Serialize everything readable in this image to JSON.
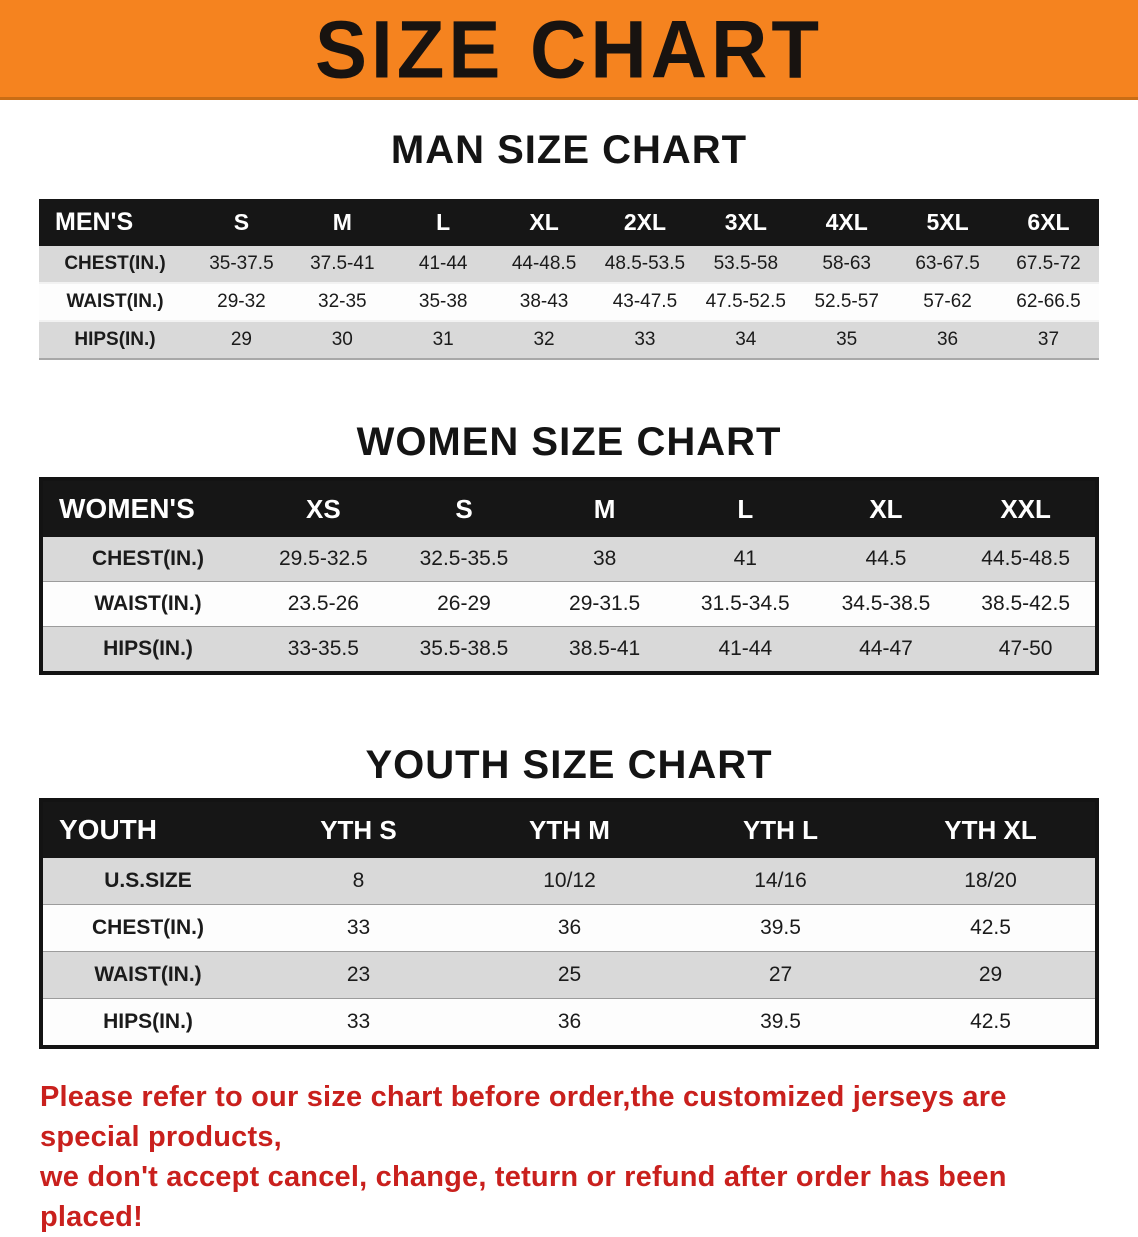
{
  "colors": {
    "banner_bg": "#F5831F",
    "header_bg": "#161616",
    "row_alt": "#D9D9D9",
    "disclaimer_color": "#C9201D"
  },
  "banner": {
    "title": "SIZE CHART"
  },
  "sections": [
    {
      "heading": "MAN SIZE CHART",
      "table": {
        "header": [
          "MEN'S",
          "S",
          "M",
          "L",
          "XL",
          "2XL",
          "3XL",
          "4XL",
          "5XL",
          "6XL"
        ],
        "rows": [
          [
            "CHEST(IN.)",
            "35-37.5",
            "37.5-41",
            "41-44",
            "44-48.5",
            "48.5-53.5",
            "53.5-58",
            "58-63",
            "63-67.5",
            "67.5-72"
          ],
          [
            "WAIST(IN.)",
            "29-32",
            "32-35",
            "35-38",
            "38-43",
            "43-47.5",
            "47.5-52.5",
            "52.5-57",
            "57-62",
            "62-66.5"
          ],
          [
            "HIPS(IN.)",
            "29",
            "30",
            "31",
            "32",
            "33",
            "34",
            "35",
            "36",
            "37"
          ]
        ]
      }
    },
    {
      "heading": "WOMEN SIZE CHART",
      "table": {
        "header": [
          "WOMEN'S",
          "XS",
          "S",
          "M",
          "L",
          "XL",
          "XXL"
        ],
        "rows": [
          [
            "CHEST(IN.)",
            "29.5-32.5",
            "32.5-35.5",
            "38",
            "41",
            "44.5",
            "44.5-48.5"
          ],
          [
            "WAIST(IN.)",
            "23.5-26",
            "26-29",
            "29-31.5",
            "31.5-34.5",
            "34.5-38.5",
            "38.5-42.5"
          ],
          [
            "HIPS(IN.)",
            "33-35.5",
            "35.5-38.5",
            "38.5-41",
            "41-44",
            "44-47",
            "47-50"
          ]
        ]
      }
    },
    {
      "heading": "YOUTH SIZE CHART",
      "table": {
        "header": [
          "YOUTH",
          "YTH S",
          "YTH M",
          "YTH L",
          "YTH XL"
        ],
        "rows": [
          [
            "U.S.SIZE",
            "8",
            "10/12",
            "14/16",
            "18/20"
          ],
          [
            "CHEST(IN.)",
            "33",
            "36",
            "39.5",
            "42.5"
          ],
          [
            "WAIST(IN.)",
            "23",
            "25",
            "27",
            "29"
          ],
          [
            "HIPS(IN.)",
            "33",
            "36",
            "39.5",
            "42.5"
          ]
        ]
      }
    }
  ],
  "disclaimer": {
    "line1": "Please refer to our size chart before order,the customized jerseys are special products,",
    "line2": "we don't accept cancel, change, teturn or refund after order has been placed!"
  }
}
